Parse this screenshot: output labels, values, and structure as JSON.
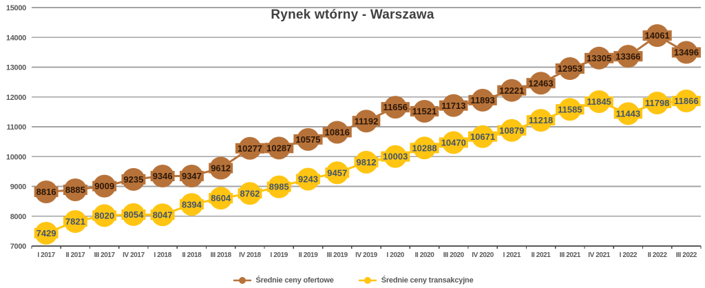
{
  "title": "Rynek wtórny - Warszawa",
  "chart_data": {
    "type": "line",
    "title": "Rynek wtórny - Warszawa",
    "categories": [
      "I 2017",
      "II 2017",
      "III 2017",
      "IV 2017",
      "I 2018",
      "II 2018",
      "III 2018",
      "IV 2018",
      "I 2019",
      "II 2019",
      "III 2019",
      "IV 2019",
      "I 2020",
      "II 2020",
      "III 2020",
      "IV 2020",
      "I 2021",
      "II 2021",
      "III 2021",
      "IV 2021",
      "I 2022",
      "II 2022",
      "III 2022"
    ],
    "series": [
      {
        "name": "Średnie ceny ofertowe",
        "color": "#B77239",
        "label_color": "#2B1708",
        "values": [
          8816,
          8885,
          9009,
          9235,
          9346,
          9347,
          9612,
          10277,
          10287,
          10575,
          10816,
          11192,
          11656,
          11521,
          11713,
          11893,
          12221,
          12463,
          12953,
          13305,
          13366,
          14061,
          13496
        ]
      },
      {
        "name": "Średnie ceny transakcyjne",
        "color": "#FFC512",
        "label_color": "#44546A",
        "values": [
          7429,
          7821,
          8020,
          8054,
          8047,
          8394,
          8604,
          8762,
          8985,
          9243,
          9457,
          9812,
          10003,
          10288,
          10470,
          10671,
          10879,
          11218,
          11585,
          11845,
          11443,
          11798,
          11866
        ]
      }
    ],
    "y_axis": {
      "min": 7000,
      "max": 15000,
      "step": 1000,
      "tick_labels": [
        "7000",
        "8000",
        "9000",
        "10000",
        "11000",
        "12000",
        "13000",
        "14000",
        "15000"
      ]
    },
    "grid": true,
    "legend_position": "bottom",
    "data_labels": "inside markers"
  },
  "colors": {
    "background": "#FFFFFF",
    "title_text": "#404040",
    "axis_text": "#595959",
    "gridline": "#A3A3A3",
    "axis_line": "#404040"
  }
}
